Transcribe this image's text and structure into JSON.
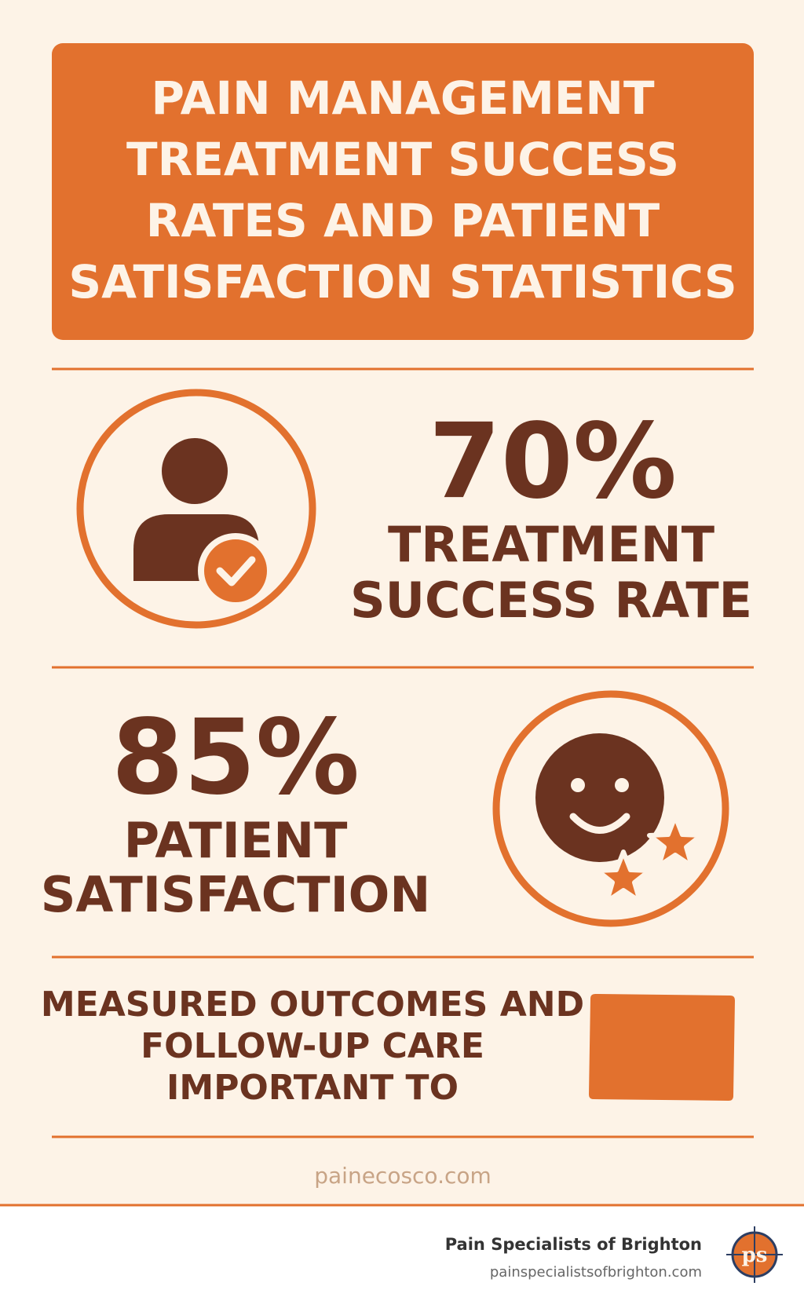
{
  "header": {
    "title_lines": [
      "PAIN MANAGEMENT",
      "TREATMENT SUCCESS",
      "RATES AND PATIENT",
      "SATISFACTION STATISTICS"
    ]
  },
  "stats": [
    {
      "value": "70%",
      "label_lines": [
        "TREATMENT",
        "SUCCESS RATE"
      ]
    },
    {
      "value": "85%",
      "label_lines": [
        "PATIENT",
        "SATISFACTION"
      ]
    }
  ],
  "note_lines": [
    "MEASURED OUTCOMES AND",
    "FOLLOW-UP CARE",
    "IMPORTANT TO"
  ],
  "source": "painecosco.com",
  "footer": {
    "name": "Pain Specialists of Brighton",
    "url": "painspecialistsofbrighton.com",
    "logo": "ps"
  }
}
